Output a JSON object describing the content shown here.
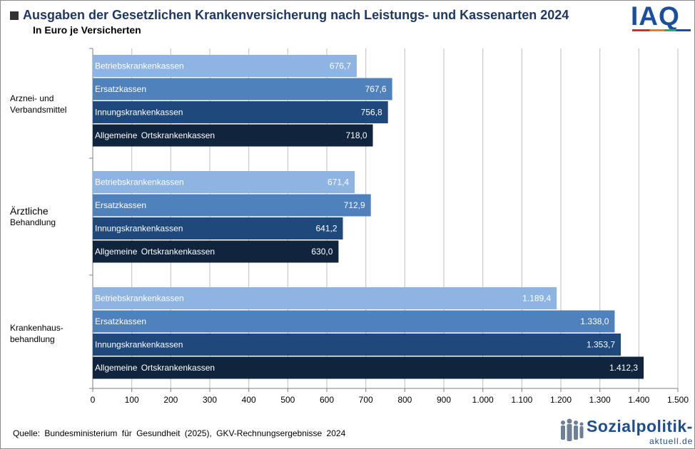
{
  "header": {
    "title": "Ausgaben der Gesetzlichen Krankenversicherung nach Leistungs- und Kassenarten 2024",
    "subtitle": "In Euro je Versicherten",
    "logo": "IAQ"
  },
  "footer": {
    "source": "Quelle:  Bundesministerium für Gesundheit (2025), GKV-Rechnungsergebnisse  2024",
    "brand_main": "Sozialpolitik-",
    "brand_sub": "aktuell.de"
  },
  "chart_data": {
    "type": "bar",
    "orientation": "horizontal",
    "title": "Ausgaben der Gesetzlichen Krankenversicherung nach Leistungs- und Kassenarten 2024",
    "subtitle": "In Euro je Versicherten",
    "categories": [
      "Arznei- und Verbandsmittel",
      "Ärztliche Behandlung",
      "Krankenhaus-behandlung"
    ],
    "category_labels": [
      [
        "Arznei-  und",
        "Verbandsmittel"
      ],
      [
        "Ärztliche",
        "Behandlung"
      ],
      [
        "Krankenhaus-",
        "behandlung"
      ]
    ],
    "series": [
      {
        "name": "Betriebskrankenkassen",
        "color": "#8eb4e3",
        "values": [
          676.7,
          671.4,
          1189.4
        ],
        "labels": [
          "676,7",
          "671,4",
          "1.189,4"
        ]
      },
      {
        "name": "Ersatzkassen",
        "color": "#4f81bd",
        "values": [
          767.6,
          712.9,
          1338.0
        ],
        "labels": [
          "767,6",
          "712,9",
          "1.338,0"
        ]
      },
      {
        "name": "Innungskrankenkassen",
        "color": "#1f497d",
        "values": [
          756.8,
          641.2,
          1353.7
        ],
        "labels": [
          "756,8",
          "641,2",
          "1.353,7"
        ]
      },
      {
        "name": "Allgemeine  Ortskrankenkassen",
        "color": "#10243e",
        "values": [
          718.0,
          630.0,
          1412.3
        ],
        "labels": [
          "718,0",
          "630,0",
          "1.412,3"
        ]
      }
    ],
    "xlim": [
      0,
      1500
    ],
    "xticks": [
      0,
      100,
      200,
      300,
      400,
      500,
      600,
      700,
      800,
      900,
      1000,
      1100,
      1200,
      1300,
      1400,
      1500
    ],
    "xtick_labels": [
      "0",
      "100",
      "200",
      "300",
      "400",
      "500",
      "600",
      "700",
      "800",
      "900",
      "1.000",
      "1.100",
      "1.200",
      "1.300",
      "1.400",
      "1.500"
    ],
    "grid": true,
    "legend": "none (series names shown inside bars)"
  }
}
